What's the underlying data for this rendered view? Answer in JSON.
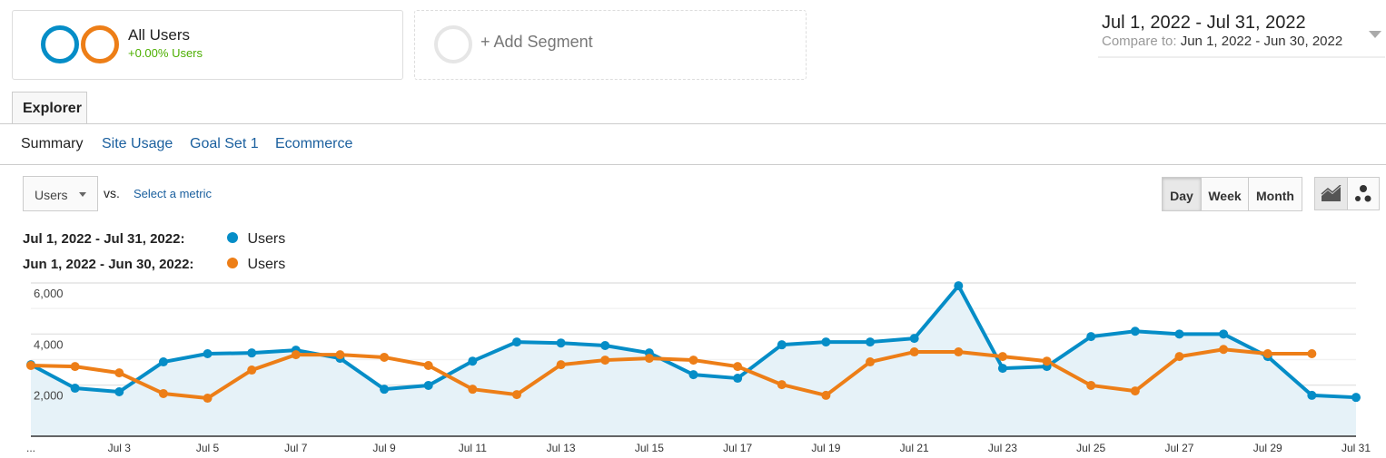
{
  "segments": {
    "primary": {
      "label": "All Users",
      "change": "+0.00% Users"
    },
    "add_label": "+ Add Segment"
  },
  "date_range": {
    "current": "Jul 1, 2022 - Jul 31, 2022",
    "compare_prefix": "Compare to:",
    "compare": "Jun 1, 2022 - Jun 30, 2022"
  },
  "tabs": [
    {
      "label": "Explorer",
      "active": true
    }
  ],
  "subtabs": [
    "Summary",
    "Site Usage",
    "Goal Set 1",
    "Ecommerce"
  ],
  "metric": {
    "selected": "Users",
    "vs": "vs.",
    "select_label": "Select a metric"
  },
  "granularity": {
    "options": [
      "Day",
      "Week",
      "Month"
    ],
    "active": "Day"
  },
  "chart_icons": [
    "line-chart-icon",
    "motion-chart-icon"
  ],
  "colors": {
    "current": "#058dc7",
    "compare": "#ed7e17",
    "positive": "#4caf00"
  },
  "legend": [
    {
      "range": "Jul 1, 2022 - Jul 31, 2022:",
      "metric": "Users"
    },
    {
      "range": "Jun 1, 2022 - Jun 30, 2022:",
      "metric": "Users"
    }
  ],
  "chart_data": {
    "type": "line",
    "ylim": [
      0,
      6000
    ],
    "yticks": [
      "2,000",
      "4,000",
      "6,000"
    ],
    "xticks": [
      "...",
      "Jul 3",
      "Jul 5",
      "Jul 7",
      "Jul 9",
      "Jul 11",
      "Jul 13",
      "Jul 15",
      "Jul 17",
      "Jul 19",
      "Jul 21",
      "Jul 23",
      "Jul 25",
      "Jul 27",
      "Jul 29",
      "Jul 31"
    ],
    "grid": true,
    "series": [
      {
        "name": "Users",
        "period": "Jul 1, 2022 - Jul 31, 2022",
        "values": [
          2800,
          1880,
          1740,
          2910,
          3230,
          3260,
          3370,
          3050,
          1840,
          1990,
          2940,
          3690,
          3650,
          3550,
          3260,
          2410,
          2270,
          3580,
          3690,
          3690,
          3830,
          5890,
          2660,
          2730,
          3900,
          4110,
          4000,
          4000,
          3120,
          1600,
          1520
        ]
      },
      {
        "name": "Users",
        "period": "Jun 1, 2022 - Jun 30, 2022",
        "values": [
          2770,
          2730,
          2480,
          1670,
          1490,
          2590,
          3190,
          3190,
          3090,
          2770,
          1840,
          1630,
          2800,
          2980,
          3050,
          2980,
          2730,
          2020,
          1600,
          2910,
          3300,
          3300,
          3120,
          2940,
          1990,
          1770,
          3120,
          3400,
          3230,
          3230
        ]
      }
    ]
  }
}
